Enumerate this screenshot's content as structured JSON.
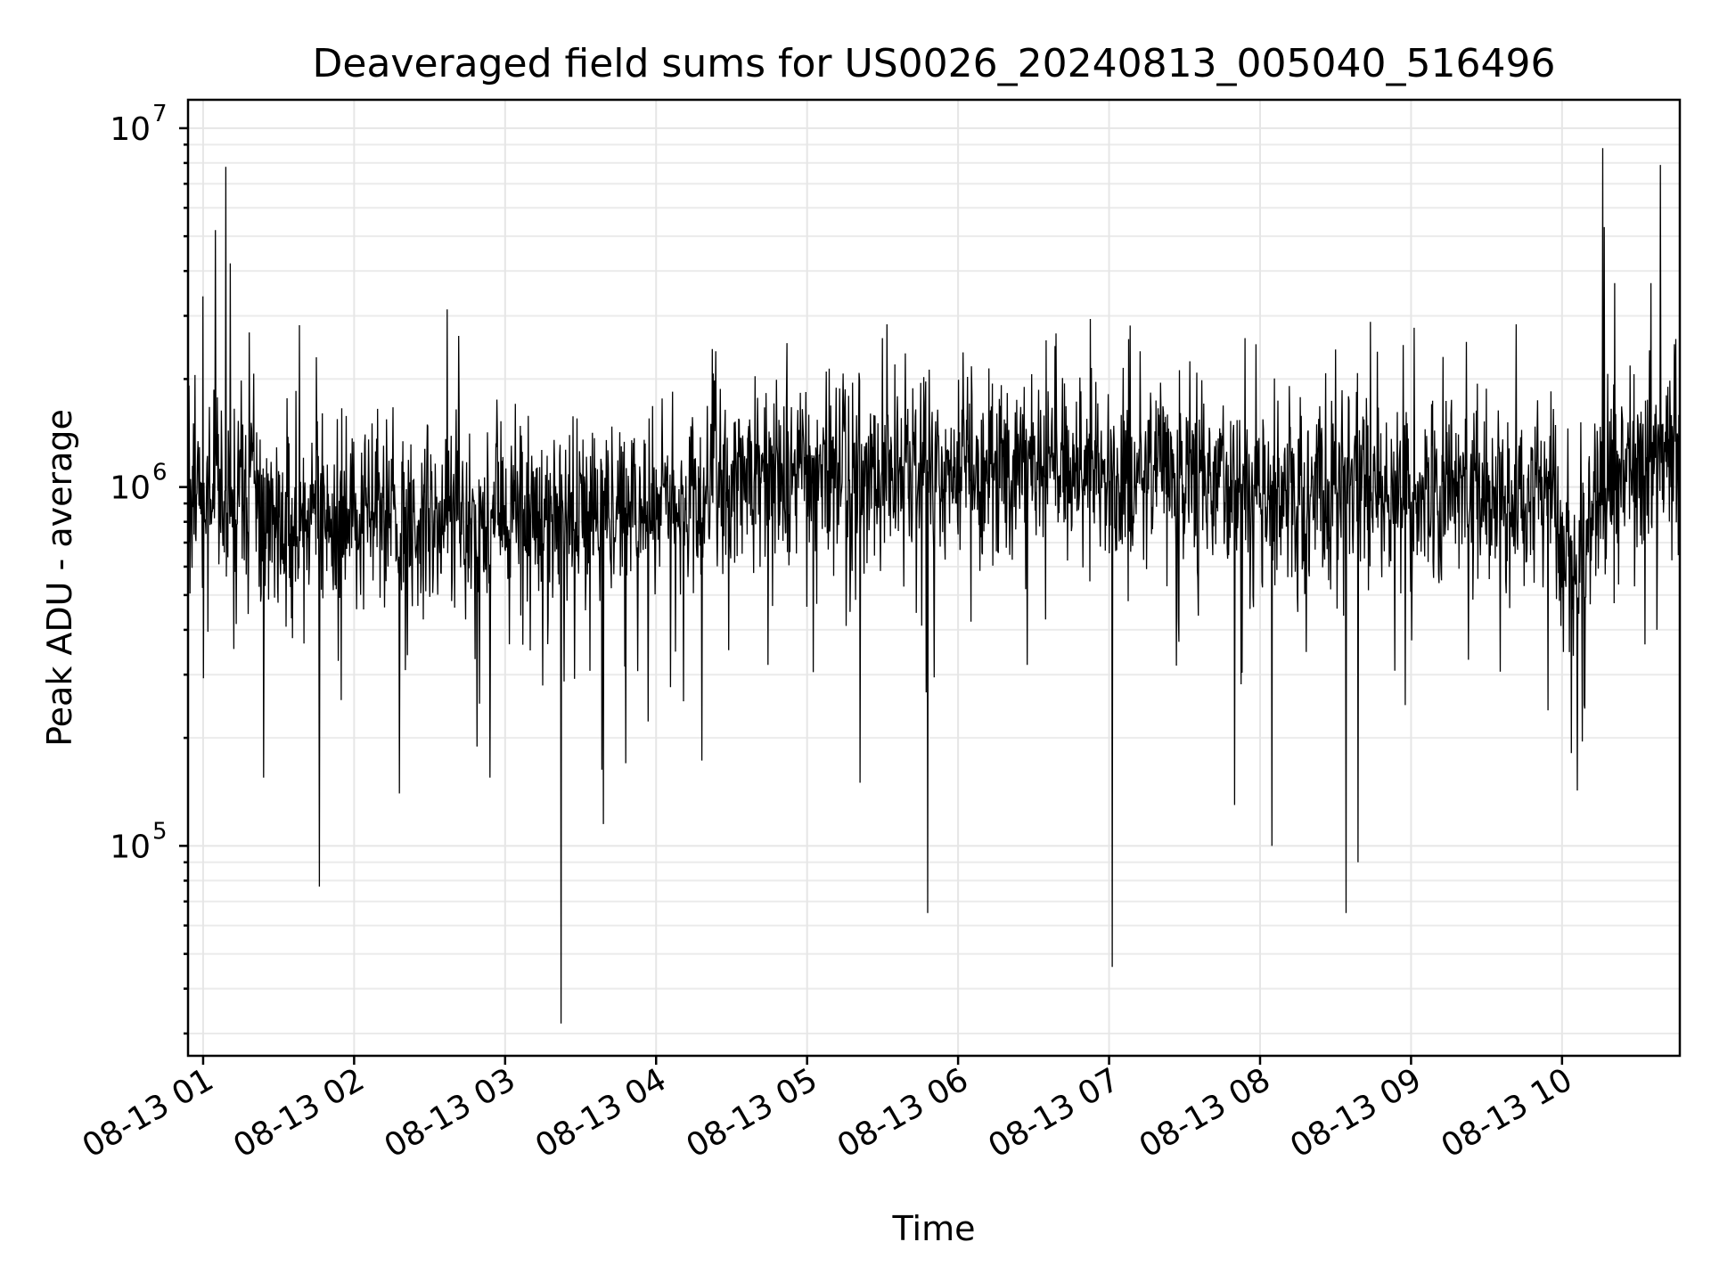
{
  "chart_data": {
    "type": "line",
    "title": "Deaveraged field sums for US0026_20240813_005040_516496",
    "xlabel": "Time",
    "ylabel": "Peak ADU - average",
    "yscale": "log",
    "ylim": [
      26000,
      12000000
    ],
    "xlim_hours": [
      0.9,
      10.78
    ],
    "grid": true,
    "line_color": "#000000",
    "x_ticks": [
      {
        "hour": 1,
        "label": "08-13 01"
      },
      {
        "hour": 2,
        "label": "08-13 02"
      },
      {
        "hour": 3,
        "label": "08-13 03"
      },
      {
        "hour": 4,
        "label": "08-13 04"
      },
      {
        "hour": 5,
        "label": "08-13 05"
      },
      {
        "hour": 6,
        "label": "08-13 06"
      },
      {
        "hour": 7,
        "label": "08-13 07"
      },
      {
        "hour": 8,
        "label": "08-13 08"
      },
      {
        "hour": 9,
        "label": "08-13 09"
      },
      {
        "hour": 10,
        "label": "08-13 10"
      }
    ],
    "y_ticks": [
      {
        "value": 100000,
        "base": "10",
        "exp": "5"
      },
      {
        "value": 1000000,
        "base": "10",
        "exp": "6"
      },
      {
        "value": 10000000,
        "base": "10",
        "exp": "7"
      }
    ],
    "series": [
      {
        "baseline_profile": [
          [
            0.9,
            1100000
          ],
          [
            1.1,
            1000000
          ],
          [
            1.5,
            800000
          ],
          [
            2.0,
            850000
          ],
          [
            3.0,
            800000
          ],
          [
            3.5,
            850000
          ],
          [
            4.0,
            900000
          ],
          [
            4.5,
            1050000
          ],
          [
            5.0,
            1150000
          ],
          [
            5.5,
            1150000
          ],
          [
            6.0,
            1100000
          ],
          [
            6.5,
            1150000
          ],
          [
            7.0,
            1100000
          ],
          [
            7.5,
            1100000
          ],
          [
            8.0,
            1000000
          ],
          [
            8.5,
            1000000
          ],
          [
            9.0,
            950000
          ],
          [
            9.5,
            1000000
          ],
          [
            9.9,
            950000
          ],
          [
            10.1,
            500000
          ],
          [
            10.2,
            950000
          ],
          [
            10.5,
            1150000
          ],
          [
            10.78,
            1500000
          ]
        ],
        "spikes_high": [
          [
            1.15,
            7800000
          ],
          [
            1.08,
            5200000
          ],
          [
            1.18,
            4200000
          ],
          [
            1.0,
            3400000
          ],
          [
            10.27,
            8800000
          ],
          [
            10.65,
            7900000
          ],
          [
            10.28,
            5300000
          ],
          [
            10.59,
            3700000
          ],
          [
            10.35,
            3700000
          ],
          [
            1.75,
            2300000
          ],
          [
            5.5,
            2600000
          ],
          [
            7.9,
            2600000
          ]
        ],
        "spikes_low": [
          [
            3.37,
            32000
          ],
          [
            1.77,
            77000
          ],
          [
            5.8,
            65000
          ],
          [
            7.02,
            46000
          ],
          [
            8.57,
            65000
          ],
          [
            8.08,
            100000
          ],
          [
            8.65,
            90000
          ],
          [
            3.65,
            115000
          ],
          [
            5.35,
            150000
          ],
          [
            1.4,
            155000
          ],
          [
            2.9,
            155000
          ],
          [
            7.83,
            130000
          ],
          [
            2.3,
            140000
          ],
          [
            3.8,
            170000
          ],
          [
            10.63,
            400000
          ]
        ]
      }
    ]
  }
}
